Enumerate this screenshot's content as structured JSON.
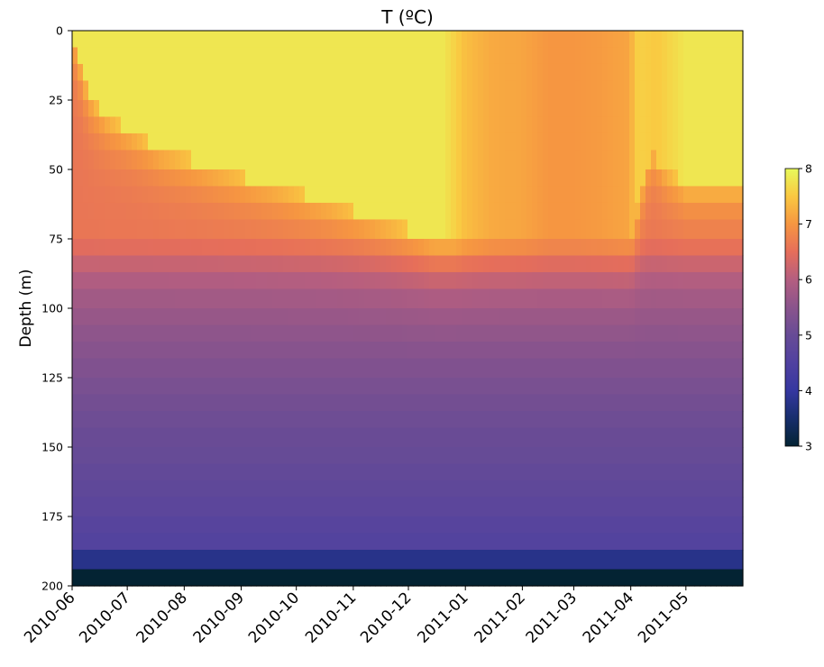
{
  "chart_data": {
    "type": "heatmap",
    "title": "T (ºC)",
    "xlabel": "",
    "ylabel": "Depth (m)",
    "colormap": "thermal",
    "color_range": [
      3,
      8
    ],
    "colorbar_ticks": [
      "3",
      "4",
      "5",
      "6",
      "7",
      "8"
    ],
    "colorbar_placement": "right",
    "grid": false,
    "y_axis": {
      "range": [
        0,
        200
      ],
      "inverted": true,
      "ticks": [
        "0",
        "25",
        "50",
        "75",
        "100",
        "125",
        "150",
        "175",
        "200"
      ]
    },
    "x_axis": {
      "range": [
        "2010-06-01",
        "2011-06-01"
      ],
      "ticks": [
        "2010-06",
        "2010-07",
        "2010-08",
        "2010-09",
        "2010-10",
        "2010-11",
        "2010-12",
        "2011-01",
        "2011-02",
        "2011-03",
        "2011-04",
        "2011-05"
      ]
    },
    "depth_bins": [
      0,
      6,
      12,
      18,
      25,
      31,
      37,
      43,
      50,
      56,
      62,
      68,
      75,
      81,
      87,
      93,
      100,
      106,
      112,
      118,
      125,
      131,
      137,
      143,
      150,
      156,
      162,
      168,
      175,
      181,
      187,
      194,
      200
    ],
    "mixed_layer_depth": {
      "dates": [
        "2010-06-01",
        "2010-06-05",
        "2010-06-08",
        "2010-06-12",
        "2010-06-20",
        "2010-07-05",
        "2010-07-20",
        "2010-08-20",
        "2010-09-20",
        "2010-10-20",
        "2010-11-15",
        "2010-12-15",
        "2011-01-05",
        "2011-02-01",
        "2011-03-01",
        "2011-03-20",
        "2011-04-01",
        "2011-04-07",
        "2011-04-12",
        "2011-04-20",
        "2011-05-01",
        "2011-06-01"
      ],
      "values": [
        0,
        10,
        18,
        25,
        31,
        37,
        43,
        50,
        56,
        62,
        68,
        75,
        75,
        75,
        75,
        75,
        75,
        56,
        43,
        50,
        56,
        56
      ]
    },
    "surface_temperature": {
      "dates": [
        "2010-06-01",
        "2010-12-20",
        "2011-01-01",
        "2011-01-15",
        "2011-02-01",
        "2011-02-15",
        "2011-03-01",
        "2011-03-15",
        "2011-03-31",
        "2011-04-05",
        "2011-04-15",
        "2011-05-01",
        "2011-06-01"
      ],
      "values": [
        7.8,
        7.8,
        7.4,
        7.2,
        7.15,
        7.0,
        7.0,
        7.05,
        7.15,
        7.6,
        7.5,
        7.8,
        7.8
      ]
    },
    "temperature_at_base": {
      "depths": [
        75,
        81,
        87,
        93,
        100,
        106,
        112,
        118,
        125,
        131,
        137,
        143,
        150,
        156,
        162,
        168,
        175,
        181,
        187,
        194,
        200
      ],
      "values": [
        6.6,
        6.3,
        6.05,
        5.85,
        5.7,
        5.6,
        5.5,
        5.4,
        5.3,
        5.2,
        5.15,
        5.05,
        5.0,
        4.95,
        4.85,
        4.8,
        4.7,
        4.6,
        4.55,
        3.0,
        3.0
      ]
    },
    "bottom_layer": {
      "depth_range": [
        194,
        200
      ],
      "value": 3.0
    }
  }
}
